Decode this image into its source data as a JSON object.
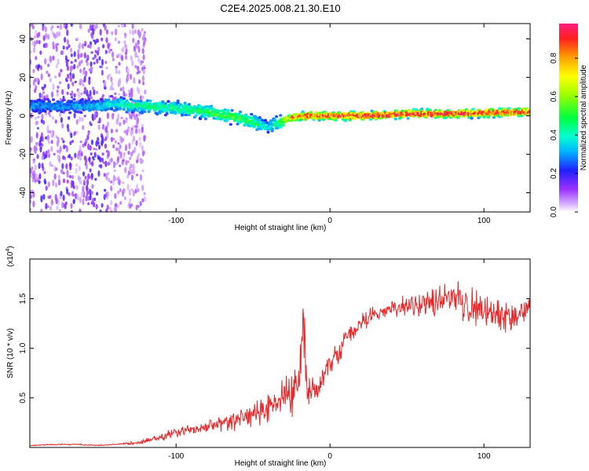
{
  "title": "C2E4.2025.008.21.30.E10",
  "chart_data": [
    {
      "type": "heatmap",
      "xlabel": "Height of straight line (km)",
      "ylabel": "Frequency (Hz)",
      "xlim": [
        -195,
        130
      ],
      "ylim": [
        -50,
        48
      ],
      "x_ticks": [
        -100,
        0,
        100
      ],
      "y_ticks": [
        -40,
        -20,
        0,
        20,
        40
      ],
      "colorbar": {
        "label": "Normalized spectral amplitude",
        "range": [
          0.0,
          0.98
        ],
        "ticks": [
          "0.0",
          "0.2",
          "0.4",
          "0.6",
          "0.8"
        ],
        "tick_values": [
          0.0,
          0.2,
          0.4,
          0.6,
          0.8
        ]
      },
      "ridge": {
        "x": [
          -190,
          -170,
          -150,
          -140,
          -120,
          -100,
          -80,
          -60,
          -50,
          -40,
          -35,
          -25,
          -15,
          0,
          25,
          50,
          75,
          100,
          130
        ],
        "frequency": [
          5,
          5,
          5,
          6,
          5,
          4,
          2,
          -1,
          -3,
          -6,
          -4,
          -1,
          0,
          0,
          0,
          1,
          1,
          1.5,
          2
        ],
        "amplitude": [
          0.3,
          0.3,
          0.35,
          0.4,
          0.45,
          0.45,
          0.5,
          0.55,
          0.5,
          0.35,
          0.45,
          0.75,
          0.85,
          0.9,
          0.9,
          0.9,
          0.9,
          0.9,
          0.85
        ]
      }
    },
    {
      "type": "line",
      "xlabel": "Height of straight line (km)",
      "ylabel": "SNR (10 * v/v)",
      "y_multiplier": "(x10",
      "y_multiplier_exp": "4",
      "y_multiplier_close": ")",
      "xlim": [
        -195,
        130
      ],
      "ylim": [
        0,
        1.9
      ],
      "x_ticks": [
        -100,
        0,
        100
      ],
      "y_ticks": [
        0.5,
        1.0,
        1.5
      ],
      "y_tick_labels": [
        "0.5",
        "1.0",
        "1.5"
      ],
      "series": [
        {
          "color": "#e8282a",
          "x": [
            -195,
            -180,
            -165,
            -150,
            -140,
            -130,
            -120,
            -110,
            -100,
            -90,
            -80,
            -70,
            -60,
            -50,
            -40,
            -30,
            -25,
            -20,
            -18,
            -15,
            -10,
            -5,
            0,
            5,
            10,
            15,
            20,
            30,
            40,
            50,
            60,
            70,
            80,
            90,
            100,
            110,
            120,
            130
          ],
          "y": [
            0.02,
            0.03,
            0.03,
            0.02,
            0.03,
            0.04,
            0.06,
            0.1,
            0.15,
            0.18,
            0.2,
            0.25,
            0.28,
            0.32,
            0.4,
            0.5,
            0.58,
            0.68,
            1.12,
            0.6,
            0.55,
            0.7,
            0.85,
            0.95,
            1.1,
            1.18,
            1.25,
            1.35,
            1.42,
            1.42,
            1.45,
            1.45,
            1.5,
            1.45,
            1.38,
            1.35,
            1.35,
            1.4
          ],
          "spread": [
            0.01,
            0.01,
            0.01,
            0.01,
            0.01,
            0.02,
            0.04,
            0.06,
            0.09,
            0.1,
            0.12,
            0.14,
            0.16,
            0.2,
            0.24,
            0.3,
            0.32,
            0.35,
            0.45,
            0.3,
            0.25,
            0.2,
            0.18,
            0.16,
            0.14,
            0.12,
            0.12,
            0.12,
            0.14,
            0.18,
            0.22,
            0.26,
            0.3,
            0.32,
            0.32,
            0.3,
            0.28,
            0.25
          ]
        }
      ]
    }
  ]
}
